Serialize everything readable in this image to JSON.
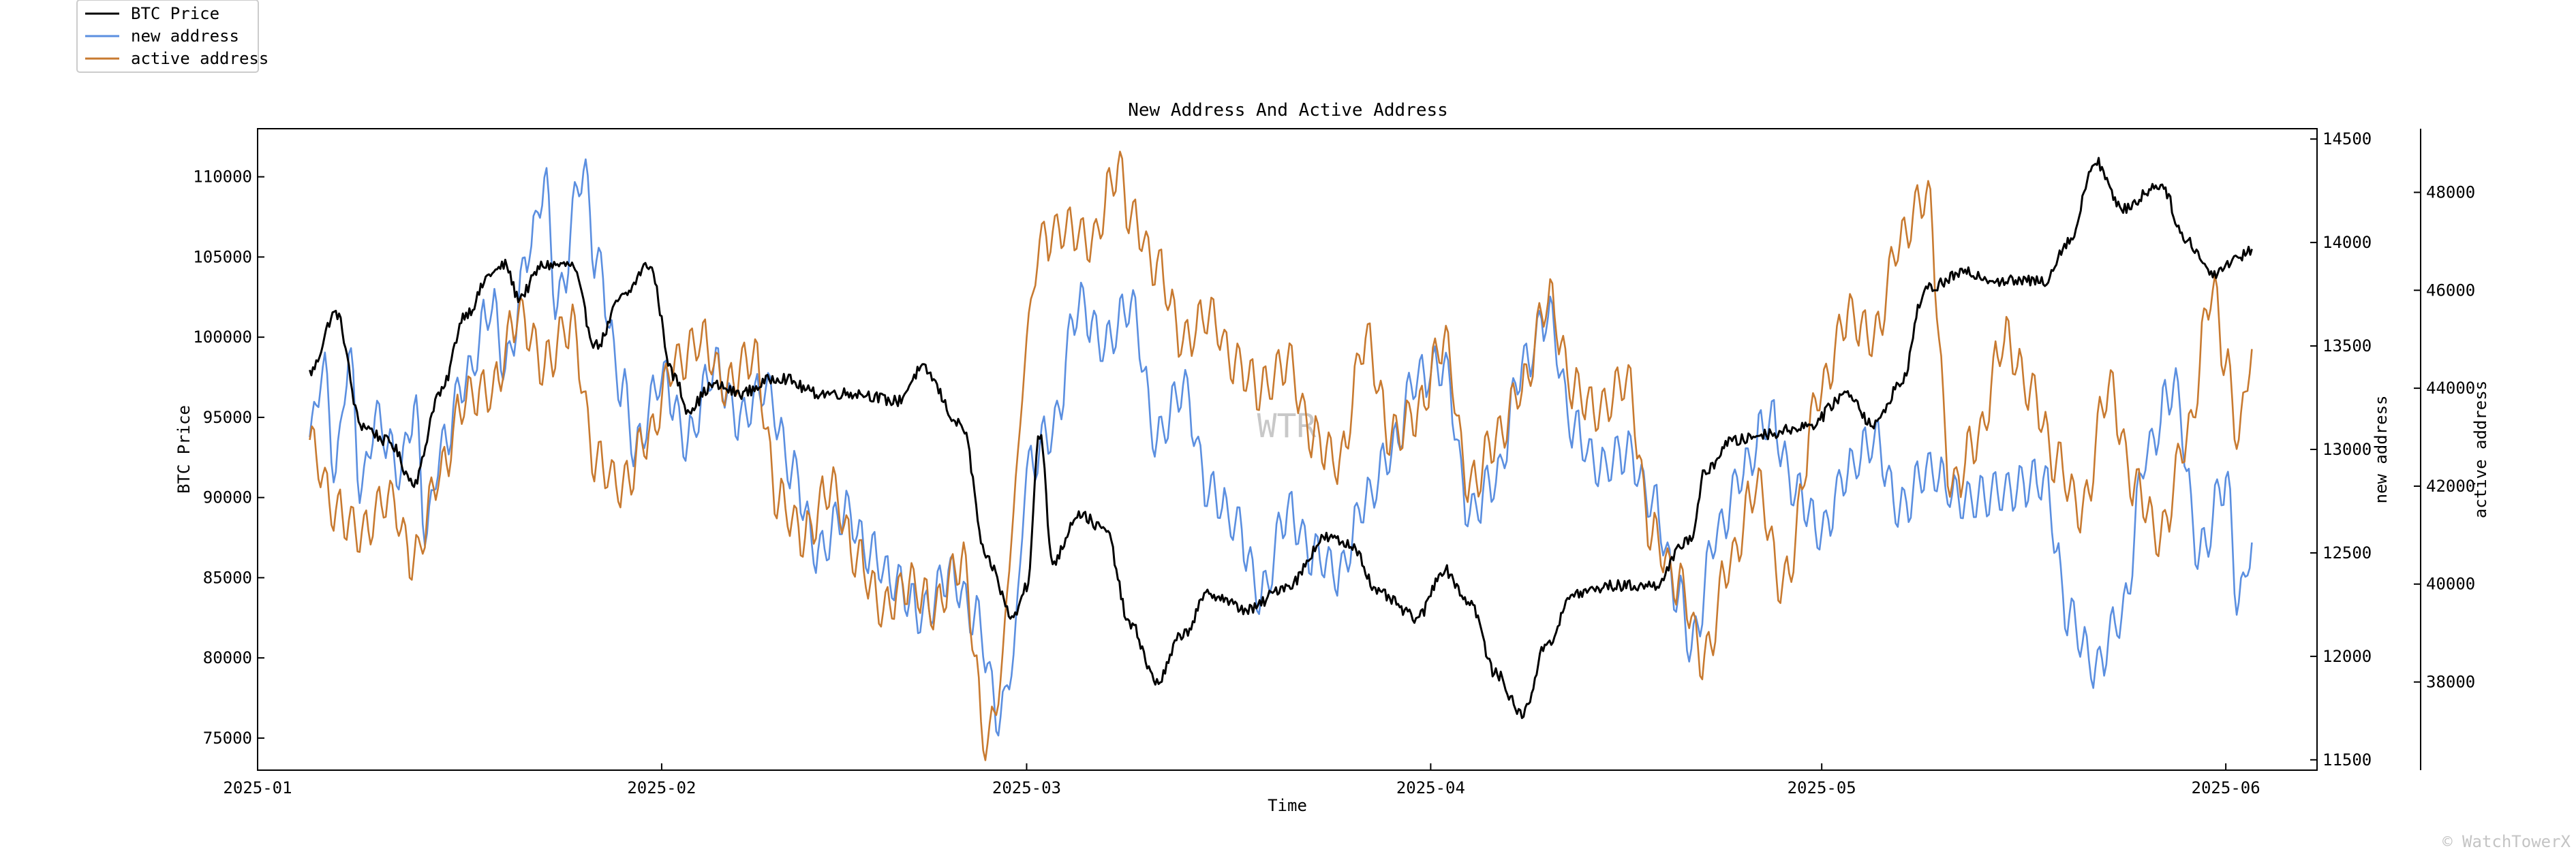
{
  "chart_data": {
    "type": "line",
    "title": "New Address And Active Address",
    "xlabel": "Time",
    "watermark": "WTR",
    "corner_watermark": "© WatchTowerX",
    "x_range": [
      "2025-01-01",
      "2025-06-08"
    ],
    "x_ticks": [
      "2025-01",
      "2025-02",
      "2025-03",
      "2025-04",
      "2025-05",
      "2025-06"
    ],
    "axes": {
      "left": {
        "label": "BTC Price",
        "ylim": [
          73000,
          113000
        ],
        "ticks": [
          75000,
          80000,
          85000,
          90000,
          95000,
          100000,
          105000,
          110000
        ]
      },
      "right1": {
        "label": "new address",
        "ylim": [
          11450,
          14550
        ],
        "ticks": [
          11500,
          12000,
          12500,
          13000,
          13500,
          14000,
          14500
        ]
      },
      "right2": {
        "label": "active address",
        "ylim": [
          36200,
          49300
        ],
        "ticks": [
          38000,
          40000,
          42000,
          44000,
          46000,
          48000
        ]
      }
    },
    "legend": {
      "position": "top-left, outside plot"
    },
    "series": [
      {
        "name": "BTC Price",
        "axis": "left",
        "color": "#000000",
        "points": [
          [
            "2025-01-05",
            97800
          ],
          [
            "2025-01-07",
            101500
          ],
          [
            "2025-01-09",
            94500
          ],
          [
            "2025-01-11",
            93500
          ],
          [
            "2025-01-13",
            91000
          ],
          [
            "2025-01-15",
            96500
          ],
          [
            "2025-01-17",
            101500
          ],
          [
            "2025-01-19",
            104000
          ],
          [
            "2025-01-20",
            104500
          ],
          [
            "2025-01-21",
            102500
          ],
          [
            "2025-01-23",
            104500
          ],
          [
            "2025-01-25",
            104500
          ],
          [
            "2025-01-27",
            99500
          ],
          [
            "2025-01-29",
            102500
          ],
          [
            "2025-01-31",
            104500
          ],
          [
            "2025-02-02",
            97500
          ],
          [
            "2025-02-03",
            95500
          ],
          [
            "2025-02-05",
            97000
          ],
          [
            "2025-02-07",
            96500
          ],
          [
            "2025-02-10",
            97500
          ],
          [
            "2025-02-13",
            96500
          ],
          [
            "2025-02-16",
            96500
          ],
          [
            "2025-02-19",
            96000
          ],
          [
            "2025-02-21",
            98000
          ],
          [
            "2025-02-24",
            94500
          ],
          [
            "2025-02-26",
            86000
          ],
          [
            "2025-02-28",
            82500
          ],
          [
            "2025-03-01",
            84500
          ],
          [
            "2025-03-02",
            94000
          ],
          [
            "2025-03-03",
            86000
          ],
          [
            "2025-03-05",
            89000
          ],
          [
            "2025-03-07",
            88000
          ],
          [
            "2025-03-09",
            82000
          ],
          [
            "2025-03-11",
            78500
          ],
          [
            "2025-03-13",
            81500
          ],
          [
            "2025-03-15",
            84000
          ],
          [
            "2025-03-18",
            83000
          ],
          [
            "2025-03-21",
            84500
          ],
          [
            "2025-03-24",
            87500
          ],
          [
            "2025-03-26",
            87000
          ],
          [
            "2025-03-28",
            84000
          ],
          [
            "2025-03-31",
            82500
          ],
          [
            "2025-04-02",
            85500
          ],
          [
            "2025-04-04",
            83500
          ],
          [
            "2025-04-06",
            79000
          ],
          [
            "2025-04-08",
            76500
          ],
          [
            "2025-04-10",
            81000
          ],
          [
            "2025-04-12",
            84000
          ],
          [
            "2025-04-15",
            84500
          ],
          [
            "2025-04-18",
            84500
          ],
          [
            "2025-04-21",
            87500
          ],
          [
            "2025-04-22",
            91500
          ],
          [
            "2025-04-24",
            93500
          ],
          [
            "2025-04-27",
            94000
          ],
          [
            "2025-04-30",
            94500
          ],
          [
            "2025-05-03",
            96500
          ],
          [
            "2025-05-05",
            94500
          ],
          [
            "2025-05-07",
            97000
          ],
          [
            "2025-05-09",
            103000
          ],
          [
            "2025-05-12",
            104000
          ],
          [
            "2025-05-15",
            103500
          ],
          [
            "2025-05-18",
            103500
          ],
          [
            "2025-05-20",
            106000
          ],
          [
            "2025-05-22",
            111000
          ],
          [
            "2025-05-24",
            108000
          ],
          [
            "2025-05-27",
            109500
          ],
          [
            "2025-05-29",
            106000
          ],
          [
            "2025-05-31",
            104000
          ],
          [
            "2025-06-02",
            105000
          ],
          [
            "2025-06-03",
            105500
          ]
        ]
      },
      {
        "name": "new address",
        "axis": "right1",
        "color": "#5b8fe0",
        "points": [
          [
            "2025-01-05",
            13050
          ],
          [
            "2025-01-06",
            13400
          ],
          [
            "2025-01-07",
            12900
          ],
          [
            "2025-01-08",
            13450
          ],
          [
            "2025-01-09",
            12800
          ],
          [
            "2025-01-10",
            13150
          ],
          [
            "2025-01-12",
            12900
          ],
          [
            "2025-01-13",
            13200
          ],
          [
            "2025-01-14",
            12600
          ],
          [
            "2025-01-15",
            13000
          ],
          [
            "2025-01-17",
            13350
          ],
          [
            "2025-01-19",
            13700
          ],
          [
            "2025-01-20",
            13400
          ],
          [
            "2025-01-22",
            14000
          ],
          [
            "2025-01-23",
            14300
          ],
          [
            "2025-01-24",
            13700
          ],
          [
            "2025-01-26",
            14350
          ],
          [
            "2025-01-27",
            13900
          ],
          [
            "2025-01-29",
            13300
          ],
          [
            "2025-01-30",
            13000
          ],
          [
            "2025-02-01",
            13350
          ],
          [
            "2025-02-03",
            13050
          ],
          [
            "2025-02-05",
            13400
          ],
          [
            "2025-02-07",
            13150
          ],
          [
            "2025-02-09",
            13300
          ],
          [
            "2025-02-11",
            12900
          ],
          [
            "2025-02-13",
            12500
          ],
          [
            "2025-02-15",
            12700
          ],
          [
            "2025-02-17",
            12500
          ],
          [
            "2025-02-19",
            12350
          ],
          [
            "2025-02-21",
            12200
          ],
          [
            "2025-02-23",
            12400
          ],
          [
            "2025-02-25",
            12200
          ],
          [
            "2025-02-27",
            11700
          ],
          [
            "2025-02-28",
            12000
          ],
          [
            "2025-03-01",
            12900
          ],
          [
            "2025-03-03",
            13100
          ],
          [
            "2025-03-05",
            13700
          ],
          [
            "2025-03-07",
            13500
          ],
          [
            "2025-03-09",
            13700
          ],
          [
            "2025-03-11",
            13050
          ],
          [
            "2025-03-13",
            13300
          ],
          [
            "2025-03-15",
            12800
          ],
          [
            "2025-03-17",
            12650
          ],
          [
            "2025-03-19",
            12300
          ],
          [
            "2025-03-21",
            12700
          ],
          [
            "2025-03-23",
            12500
          ],
          [
            "2025-03-25",
            12400
          ],
          [
            "2025-03-27",
            12750
          ],
          [
            "2025-03-29",
            13000
          ],
          [
            "2025-03-31",
            13350
          ],
          [
            "2025-04-02",
            13400
          ],
          [
            "2025-04-04",
            12700
          ],
          [
            "2025-04-06",
            12850
          ],
          [
            "2025-04-08",
            13400
          ],
          [
            "2025-04-10",
            13650
          ],
          [
            "2025-04-12",
            13100
          ],
          [
            "2025-04-14",
            12900
          ],
          [
            "2025-04-16",
            13000
          ],
          [
            "2025-04-18",
            12750
          ],
          [
            "2025-04-20",
            12300
          ],
          [
            "2025-04-21",
            12050
          ],
          [
            "2025-04-23",
            12600
          ],
          [
            "2025-04-25",
            12900
          ],
          [
            "2025-04-27",
            13150
          ],
          [
            "2025-04-29",
            12800
          ],
          [
            "2025-05-01",
            12600
          ],
          [
            "2025-05-03",
            12900
          ],
          [
            "2025-05-05",
            13050
          ],
          [
            "2025-05-07",
            12700
          ],
          [
            "2025-05-09",
            12900
          ],
          [
            "2025-05-12",
            12750
          ],
          [
            "2025-05-15",
            12800
          ],
          [
            "2025-05-18",
            12850
          ],
          [
            "2025-05-20",
            12200
          ],
          [
            "2025-05-22",
            11950
          ],
          [
            "2025-05-24",
            12200
          ],
          [
            "2025-05-26",
            13000
          ],
          [
            "2025-05-28",
            13300
          ],
          [
            "2025-05-30",
            12500
          ],
          [
            "2025-06-01",
            12850
          ],
          [
            "2025-06-02",
            12250
          ],
          [
            "2025-06-03",
            12550
          ]
        ]
      },
      {
        "name": "active address",
        "axis": "right2",
        "color": "#c87a30",
        "points": [
          [
            "2025-01-05",
            42900
          ],
          [
            "2025-01-07",
            41500
          ],
          [
            "2025-01-09",
            41000
          ],
          [
            "2025-01-11",
            41800
          ],
          [
            "2025-01-13",
            40500
          ],
          [
            "2025-01-15",
            42300
          ],
          [
            "2025-01-17",
            43800
          ],
          [
            "2025-01-19",
            44000
          ],
          [
            "2025-01-21",
            45500
          ],
          [
            "2025-01-23",
            44500
          ],
          [
            "2025-01-25",
            45300
          ],
          [
            "2025-01-27",
            42500
          ],
          [
            "2025-01-29",
            42000
          ],
          [
            "2025-01-31",
            43000
          ],
          [
            "2025-02-02",
            44500
          ],
          [
            "2025-02-04",
            45000
          ],
          [
            "2025-02-06",
            44000
          ],
          [
            "2025-02-08",
            44700
          ],
          [
            "2025-02-10",
            41700
          ],
          [
            "2025-02-12",
            41000
          ],
          [
            "2025-02-14",
            42000
          ],
          [
            "2025-02-16",
            40500
          ],
          [
            "2025-02-18",
            39500
          ],
          [
            "2025-02-20",
            40000
          ],
          [
            "2025-02-22",
            39500
          ],
          [
            "2025-02-24",
            40500
          ],
          [
            "2025-02-26",
            36700
          ],
          [
            "2025-02-27",
            38000
          ],
          [
            "2025-02-28",
            41500
          ],
          [
            "2025-03-01",
            45000
          ],
          [
            "2025-03-02",
            47000
          ],
          [
            "2025-03-04",
            47300
          ],
          [
            "2025-03-06",
            47000
          ],
          [
            "2025-03-08",
            48500
          ],
          [
            "2025-03-09",
            47500
          ],
          [
            "2025-03-11",
            46500
          ],
          [
            "2025-03-13",
            45000
          ],
          [
            "2025-03-15",
            45500
          ],
          [
            "2025-03-17",
            44500
          ],
          [
            "2025-03-19",
            44000
          ],
          [
            "2025-03-21",
            44500
          ],
          [
            "2025-03-23",
            43000
          ],
          [
            "2025-03-25",
            42500
          ],
          [
            "2025-03-27",
            45000
          ],
          [
            "2025-03-29",
            43000
          ],
          [
            "2025-03-31",
            43500
          ],
          [
            "2025-04-02",
            45000
          ],
          [
            "2025-04-04",
            42000
          ],
          [
            "2025-04-06",
            43000
          ],
          [
            "2025-04-08",
            44000
          ],
          [
            "2025-04-10",
            45800
          ],
          [
            "2025-04-12",
            44000
          ],
          [
            "2025-04-14",
            43500
          ],
          [
            "2025-04-16",
            44200
          ],
          [
            "2025-04-18",
            41000
          ],
          [
            "2025-04-20",
            40000
          ],
          [
            "2025-04-22",
            38500
          ],
          [
            "2025-04-24",
            40500
          ],
          [
            "2025-04-26",
            42000
          ],
          [
            "2025-04-28",
            40000
          ],
          [
            "2025-05-01",
            44000
          ],
          [
            "2025-05-03",
            45500
          ],
          [
            "2025-05-05",
            45000
          ],
          [
            "2025-05-07",
            47000
          ],
          [
            "2025-05-09",
            48000
          ],
          [
            "2025-05-11",
            42000
          ],
          [
            "2025-05-13",
            43000
          ],
          [
            "2025-05-15",
            45000
          ],
          [
            "2025-05-17",
            44000
          ],
          [
            "2025-05-19",
            42500
          ],
          [
            "2025-05-21",
            41500
          ],
          [
            "2025-05-23",
            44000
          ],
          [
            "2025-05-25",
            42000
          ],
          [
            "2025-05-27",
            41000
          ],
          [
            "2025-05-29",
            43000
          ],
          [
            "2025-05-31",
            46000
          ],
          [
            "2025-06-01",
            44500
          ],
          [
            "2025-06-02",
            43000
          ],
          [
            "2025-06-03",
            44800
          ]
        ]
      }
    ]
  }
}
